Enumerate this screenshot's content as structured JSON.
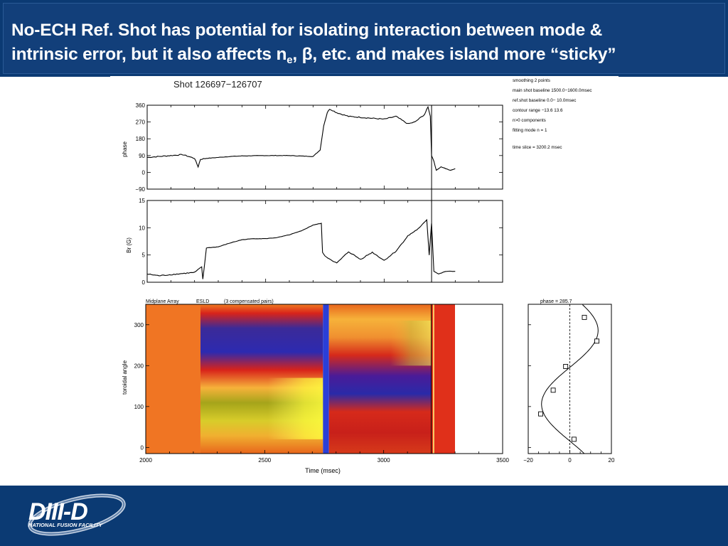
{
  "title": {
    "line1": "No-ECH Ref. Shot has potential for  isolating interaction between mode &",
    "line2_pre": "intrinsic error, but it also affects n",
    "line2_sub": "e",
    "line2_post": ", β, etc. and makes island more “sticky”"
  },
  "figure": {
    "shot_label": "Shot 126697−126707",
    "info_lines": [
      "smoothing    2 points",
      "main shot baseline  1500.0−1600.0msec",
      "ref.shot baseline     0.0−   10.0msec",
      "contour range   −13.6   13.6",
      "  n>0    components",
      "fitting mode n =   1",
      "time slice = 3200.2 msec"
    ],
    "contour_header": [
      "Midplane Array",
      "ESLD",
      "(3 compensated pairs)"
    ],
    "fit_label": "phase =  285.7"
  },
  "chart_data": [
    {
      "type": "line",
      "ylabel": "phase",
      "xlim": [
        2000,
        3500
      ],
      "ylim": [
        -90,
        360
      ],
      "yticks": [
        -90,
        0,
        90,
        180,
        270,
        360
      ],
      "cursor_x": 3200.2,
      "x": [
        2000,
        2050,
        2100,
        2150,
        2200,
        2215,
        2225,
        2250,
        2300,
        2350,
        2400,
        2500,
        2600,
        2700,
        2730,
        2745,
        2760,
        2770,
        2800,
        2850,
        2900,
        2950,
        3000,
        3050,
        3100,
        3130,
        3150,
        3170,
        3185,
        3195,
        3200,
        3210,
        3220,
        3240,
        3260,
        3280,
        3300
      ],
      "values": [
        80,
        85,
        90,
        95,
        75,
        30,
        70,
        75,
        80,
        85,
        88,
        90,
        90,
        85,
        120,
        250,
        320,
        340,
        320,
        300,
        295,
        290,
        285,
        300,
        260,
        270,
        290,
        310,
        350,
        300,
        90,
        60,
        10,
        30,
        20,
        10,
        20
      ]
    },
    {
      "type": "line",
      "ylabel": "Br (G)",
      "xlim": [
        2000,
        3500
      ],
      "ylim": [
        0,
        15
      ],
      "yticks": [
        0,
        5,
        10,
        15
      ],
      "cursor_x": 3200.2,
      "x": [
        2000,
        2050,
        2100,
        2150,
        2200,
        2230,
        2235,
        2250,
        2300,
        2350,
        2400,
        2450,
        2500,
        2550,
        2600,
        2650,
        2700,
        2735,
        2740,
        2750,
        2800,
        2850,
        2900,
        2950,
        3000,
        3050,
        3100,
        3150,
        3180,
        3190,
        3200,
        3210,
        3230,
        3260,
        3300
      ],
      "values": [
        1.5,
        1.2,
        1.4,
        1.6,
        1.8,
        2.8,
        0.5,
        6.3,
        6.5,
        7.2,
        7.8,
        8.0,
        8.0,
        8.2,
        8.7,
        9.4,
        10.5,
        10.8,
        5.5,
        4.8,
        3.5,
        5.6,
        4.2,
        5.5,
        4.0,
        5.7,
        8.5,
        10.0,
        11.5,
        5.0,
        10.8,
        2.0,
        1.5,
        2.0,
        2.0
      ]
    },
    {
      "type": "heatmap",
      "xlabel": "Time (msec)",
      "ylabel": "toroidal angle",
      "xlim": [
        2000,
        3500
      ],
      "ylim": [
        -15,
        350
      ],
      "xticks": [
        2000,
        2500,
        3000,
        3500
      ],
      "yticks": [
        0,
        100,
        200,
        300
      ],
      "data_x_end": 3300,
      "bands": [
        {
          "x_start": 2000,
          "x_end": 2230,
          "color": "#f06a1e"
        },
        {
          "x_start": 2230,
          "x_end": 2745,
          "low_color": "#a5a41a",
          "mid_color": "#d8cc2a",
          "high_color": "#3b2a98"
        },
        {
          "x_start": 2745,
          "x_end": 2770,
          "color": "#2a3fd8"
        },
        {
          "x_start": 2770,
          "x_end": 3200,
          "low_color": "#4a1b98",
          "mid_color": "#d62a1a",
          "high_color": "#f6b23a"
        },
        {
          "x_start": 3200,
          "x_end": 3300,
          "color": "#e0301a"
        }
      ]
    },
    {
      "type": "scatter",
      "title": "phase =  285.7",
      "xlim": [
        -20,
        20
      ],
      "ylim": [
        -15,
        350
      ],
      "xticks": [
        -20,
        0,
        20
      ],
      "points": [
        {
          "x": 7,
          "y": 318
        },
        {
          "x": 13,
          "y": 260
        },
        {
          "x": -2,
          "y": 198
        },
        {
          "x": -8,
          "y": 140
        },
        {
          "x": -14,
          "y": 82
        },
        {
          "x": 2,
          "y": 20
        }
      ],
      "fit_amplitude": 13.6,
      "fit_phase": 285.7
    }
  ]
}
